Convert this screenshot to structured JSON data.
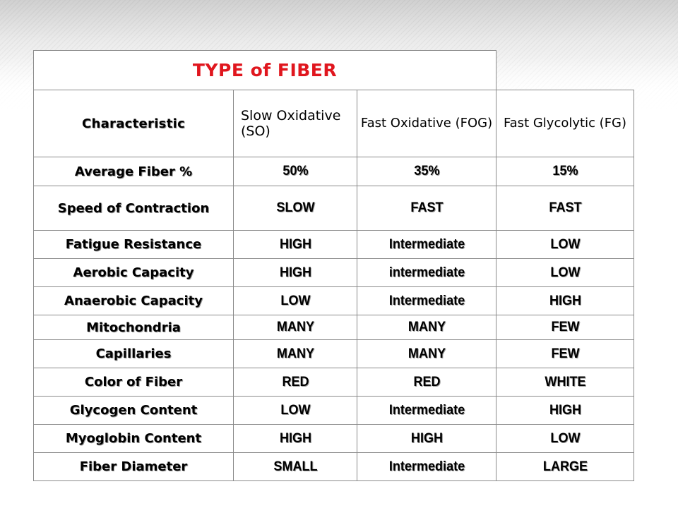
{
  "title": "TYPE of FIBER",
  "headers": {
    "characteristic": "Characteristic",
    "slow_oxidative": "Slow Oxidative (SO)",
    "fast_oxidative": "Fast Oxidative (FOG)",
    "fast_glycolytic": "Fast Glycolytic (FG)"
  },
  "rows": [
    {
      "label": "Average Fiber %",
      "so": "50%",
      "fog": "35%",
      "fg": "15%"
    },
    {
      "label": "Speed of Contraction",
      "so": "SLOW",
      "fog": "FAST",
      "fg": "FAST"
    },
    {
      "label": "Fatigue Resistance",
      "so": "HIGH",
      "fog": "Intermediate",
      "fg": "LOW"
    },
    {
      "label": "Aerobic Capacity",
      "so": "HIGH",
      "fog": "intermediate",
      "fg": "LOW"
    },
    {
      "label": "Anaerobic Capacity",
      "so": "LOW",
      "fog": "Intermediate",
      "fg": "HIGH"
    },
    {
      "label": "Mitochondria",
      "so": "MANY",
      "fog": "MANY",
      "fg": "FEW"
    },
    {
      "label": "Capillaries",
      "so": "MANY",
      "fog": "MANY",
      "fg": "FEW"
    },
    {
      "label": "Color of Fiber",
      "so": "RED",
      "fog": "RED",
      "fg": "WHITE"
    },
    {
      "label": "Glycogen Content",
      "so": "LOW",
      "fog": "Intermediate",
      "fg": "HIGH"
    },
    {
      "label": "Myoglobin Content",
      "so": "HIGH",
      "fog": "HIGH",
      "fg": "LOW"
    },
    {
      "label": "Fiber Diameter",
      "so": "SMALL",
      "fog": "Intermediate",
      "fg": "LARGE"
    }
  ],
  "colors": {
    "title": "#e0161e",
    "border": "#8a8a8a",
    "text": "#000000"
  }
}
